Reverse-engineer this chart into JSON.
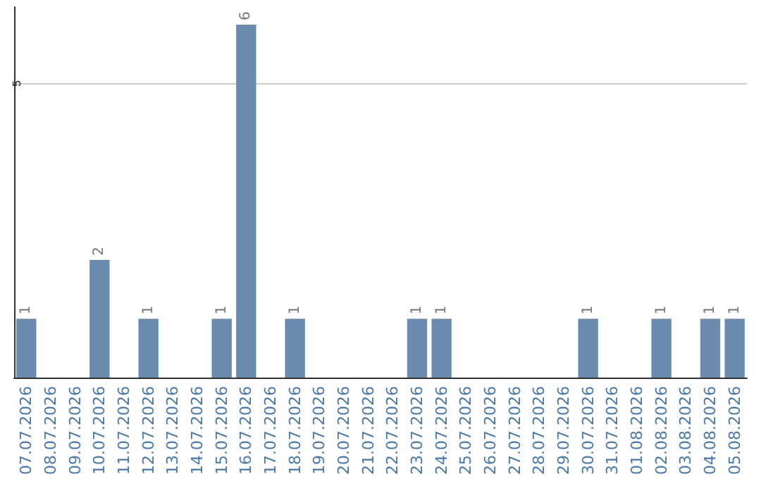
{
  "chart_data": {
    "type": "bar",
    "categories": [
      "07.07.2026",
      "08.07.2026",
      "09.07.2026",
      "10.07.2026",
      "11.07.2026",
      "12.07.2026",
      "13.07.2026",
      "14.07.2026",
      "15.07.2026",
      "16.07.2026",
      "17.07.2026",
      "18.07.2026",
      "19.07.2026",
      "20.07.2026",
      "21.07.2026",
      "22.07.2026",
      "23.07.2026",
      "24.07.2026",
      "25.07.2026",
      "26.07.2026",
      "27.07.2026",
      "28.07.2026",
      "29.07.2026",
      "30.07.2026",
      "31.07.2026",
      "01.08.2026",
      "02.08.2026",
      "03.08.2026",
      "04.08.2026",
      "05.08.2026"
    ],
    "values": [
      1,
      0,
      0,
      2,
      0,
      1,
      0,
      0,
      1,
      6,
      0,
      1,
      0,
      0,
      0,
      0,
      1,
      1,
      0,
      0,
      0,
      0,
      0,
      1,
      0,
      0,
      1,
      0,
      1,
      1
    ],
    "color": "#6b8cae",
    "value_labels": [
      "1",
      null,
      null,
      "2",
      null,
      "1",
      null,
      null,
      "1",
      "6",
      null,
      "1",
      null,
      null,
      null,
      null,
      "1",
      "1",
      null,
      null,
      null,
      null,
      null,
      "1",
      null,
      null,
      "1",
      null,
      "1",
      "1"
    ],
    "ylim": [
      0,
      6.3
    ],
    "yticks": [
      5
    ],
    "grid": "y"
  }
}
